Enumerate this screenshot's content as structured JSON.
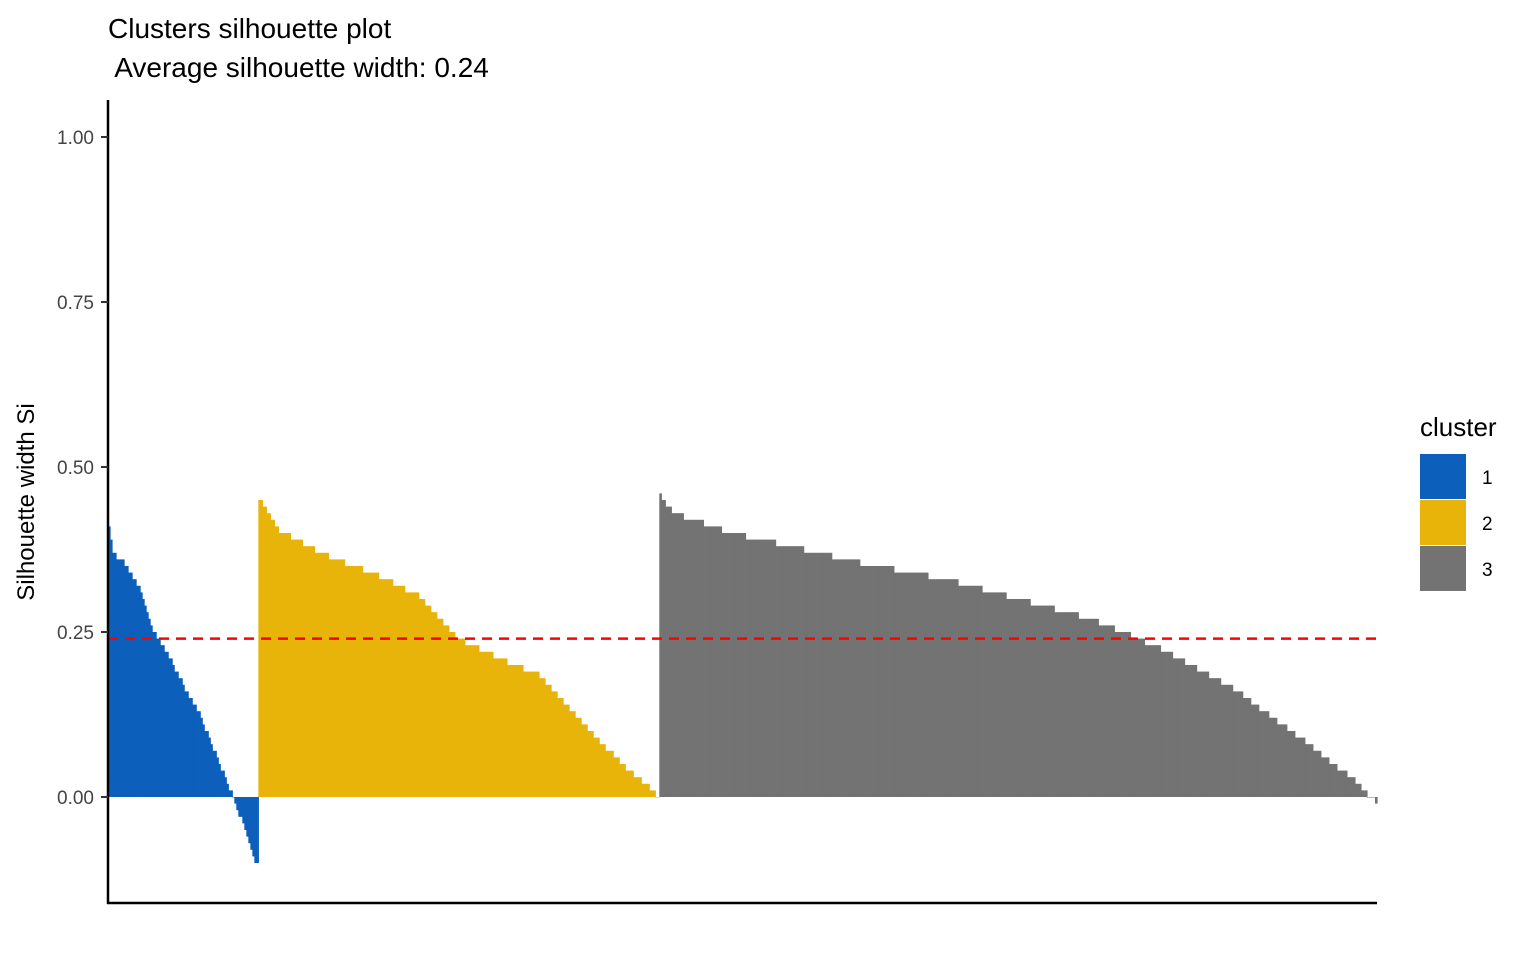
{
  "chart_data": {
    "type": "bar",
    "title": "Clusters silhouette plot",
    "subtitle": " Average silhouette width: 0.24",
    "xlabel": "",
    "ylabel": "Silhouette width Si",
    "ylim": [
      -0.16,
      1.05
    ],
    "yticks": [
      "0.00",
      "0.25",
      "0.50",
      "0.75",
      "1.00"
    ],
    "ytick_values": [
      0,
      0.25,
      0.5,
      0.75,
      1.0
    ],
    "average_silhouette": 0.24,
    "grid": false,
    "legend": {
      "title": "cluster",
      "position": "right"
    },
    "series": [
      {
        "name": "1",
        "color": "#0c5fbb",
        "count": 75,
        "profile": [
          [
            0,
            0.405
          ],
          [
            0.03,
            0.37
          ],
          [
            0.1,
            0.355
          ],
          [
            0.2,
            0.32
          ],
          [
            0.3,
            0.25
          ],
          [
            0.4,
            0.215
          ],
          [
            0.5,
            0.17
          ],
          [
            0.6,
            0.13
          ],
          [
            0.7,
            0.075
          ],
          [
            0.8,
            0.02
          ],
          [
            0.85,
            -0.01
          ],
          [
            0.92,
            -0.05
          ],
          [
            1,
            -0.105
          ]
        ]
      },
      {
        "name": "2",
        "color": "#e9b40a",
        "count": 200,
        "profile": [
          [
            0,
            0.452
          ],
          [
            0.05,
            0.405
          ],
          [
            0.15,
            0.37
          ],
          [
            0.3,
            0.335
          ],
          [
            0.4,
            0.305
          ],
          [
            0.5,
            0.24
          ],
          [
            0.6,
            0.21
          ],
          [
            0.7,
            0.185
          ],
          [
            0.8,
            0.12
          ],
          [
            0.9,
            0.055
          ],
          [
            1,
            0.002
          ]
        ]
      },
      {
        "name": "3",
        "color": "#737373",
        "count": 358,
        "profile": [
          [
            0,
            0.455
          ],
          [
            0.02,
            0.43
          ],
          [
            0.1,
            0.4
          ],
          [
            0.2,
            0.375
          ],
          [
            0.3,
            0.35
          ],
          [
            0.4,
            0.33
          ],
          [
            0.5,
            0.3
          ],
          [
            0.6,
            0.27
          ],
          [
            0.7,
            0.225
          ],
          [
            0.8,
            0.165
          ],
          [
            0.9,
            0.085
          ],
          [
            0.97,
            0.025
          ],
          [
            1,
            -0.008
          ]
        ]
      }
    ],
    "reference_line": {
      "value": 0.24,
      "color": "#ff0000",
      "style": "dashed"
    }
  }
}
